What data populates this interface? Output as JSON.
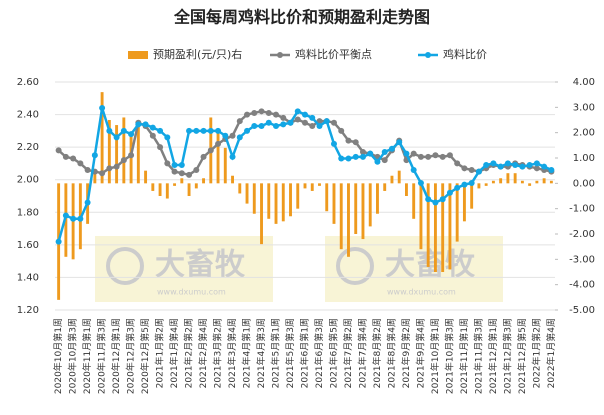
{
  "chart_data": {
    "type": "combo",
    "title": "全国每周鸡料比价和预期盈利走势图",
    "legend": "top",
    "grid": true,
    "watermarks": [
      {
        "text": "大畜牧",
        "url": "www.dxumu.com"
      },
      {
        "text": "大畜牧",
        "url": "www.dxumu.com"
      }
    ],
    "categories": [
      "2020年10月第1周",
      null,
      "2020年10月第3周",
      null,
      "2020年11月第1周",
      null,
      "2020年11月第3周",
      null,
      "2020年12月第1周",
      null,
      "2020年12月第3周",
      null,
      "2020年12月第5周",
      null,
      "2021年1月第2周",
      null,
      "2021年1月第4周",
      null,
      "2021年2月第2周",
      null,
      "2021年2月第4周",
      null,
      "2021年3月第2周",
      null,
      "2021年3月第4周",
      null,
      "2021年4月第1周",
      null,
      "2021年4月第3周",
      null,
      "2021年5月第1周",
      null,
      "2021年5月第3周",
      null,
      "2021年6月第1周",
      null,
      "2021年6月第3周",
      null,
      "2021年6月第5周",
      null,
      "2021年7月第2周",
      null,
      "2021年7月第4周",
      null,
      "2021年8月第2周",
      null,
      "2021年8月第4周",
      null,
      "2021年9月第2周",
      null,
      "2021年9月第4周",
      null,
      "2021年10月第1周",
      null,
      "2021年10月第3周",
      null,
      "2021年11月第1周",
      null,
      "2021年11月第3周",
      null,
      "2021年12月第1周",
      null,
      "2021年12月第3周",
      null,
      "2021年12月第5周",
      null,
      "2022年1月第2周",
      null,
      "2022年1月第4周"
    ],
    "series": [
      {
        "name": "预期盈利(元/只)右",
        "type": "bar",
        "axis": "y2",
        "color": "#ee9a1e",
        "values": [
          -4.6,
          -2.9,
          -3.0,
          -2.6,
          -1.6,
          0.4,
          3.6,
          2.5,
          2.3,
          2.6,
          1.9,
          2.4,
          0.5,
          -0.3,
          -0.5,
          -0.6,
          -0.1,
          0.2,
          -0.5,
          -0.2,
          0.2,
          2.6,
          2.0,
          1.4,
          0.3,
          -0.4,
          -0.8,
          -1.2,
          -2.4,
          -1.4,
          -1.6,
          -1.5,
          -1.3,
          -1.0,
          -0.2,
          -0.3,
          -0.1,
          -1.1,
          -1.6,
          -2.6,
          -2.9,
          -2.0,
          -2.2,
          -1.7,
          -1.2,
          -0.3,
          0.3,
          0.5,
          -0.5,
          -1.4,
          -2.6,
          -3.3,
          -3.5,
          -3.5,
          -3.4,
          -2.3,
          -1.5,
          -1.0,
          -0.2,
          -0.1,
          0.1,
          0.2,
          0.4,
          0.4,
          0.1,
          -0.1,
          0.1,
          0.2,
          0.1
        ]
      },
      {
        "name": "鸡料比价平衡点",
        "type": "line",
        "axis": "y",
        "color": "#808080",
        "values": [
          2.18,
          2.14,
          2.13,
          2.1,
          2.06,
          2.05,
          2.04,
          2.07,
          2.08,
          2.12,
          2.15,
          2.35,
          2.33,
          2.27,
          2.2,
          2.1,
          2.05,
          2.04,
          2.03,
          2.06,
          2.14,
          2.18,
          2.22,
          2.25,
          2.27,
          2.36,
          2.4,
          2.41,
          2.42,
          2.41,
          2.4,
          2.38,
          2.35,
          2.37,
          2.35,
          2.33,
          2.36,
          2.36,
          2.35,
          2.3,
          2.24,
          2.23,
          2.17,
          2.16,
          2.14,
          2.12,
          2.18,
          2.24,
          2.12,
          2.16,
          2.14,
          2.14,
          2.15,
          2.14,
          2.15,
          2.1,
          2.07,
          2.06,
          2.05,
          2.07,
          2.09,
          2.08,
          2.08,
          2.1,
          2.09,
          2.08,
          2.07,
          2.06,
          2.05
        ]
      },
      {
        "name": "鸡料比价",
        "type": "line",
        "axis": "y",
        "color": "#12a6e4",
        "values": [
          1.62,
          1.78,
          1.76,
          1.76,
          1.86,
          2.15,
          2.44,
          2.3,
          2.26,
          2.3,
          2.28,
          2.34,
          2.34,
          2.32,
          2.3,
          2.26,
          2.09,
          2.09,
          2.3,
          2.3,
          2.3,
          2.3,
          2.3,
          2.27,
          2.14,
          2.26,
          2.3,
          2.33,
          2.33,
          2.35,
          2.33,
          2.34,
          2.35,
          2.42,
          2.4,
          2.38,
          2.33,
          2.36,
          2.22,
          2.13,
          2.13,
          2.14,
          2.14,
          2.16,
          2.11,
          2.17,
          2.19,
          2.23,
          2.16,
          2.06,
          1.98,
          1.88,
          1.86,
          1.88,
          1.92,
          1.95,
          1.97,
          1.98,
          2.05,
          2.09,
          2.1,
          2.08,
          2.1,
          2.09,
          2.08,
          2.09,
          2.1,
          2.08,
          2.06
        ]
      }
    ],
    "ylim": [
      1.2,
      2.6
    ],
    "yticks": [
      {
        "value": 1.2,
        "label": "1.20"
      },
      {
        "value": 1.4,
        "label": "1.40"
      },
      {
        "value": 1.6,
        "label": "1.60"
      },
      {
        "value": 1.8,
        "label": "1.80"
      },
      {
        "value": 2.0,
        "label": "2.00"
      },
      {
        "value": 2.2,
        "label": "2.20"
      },
      {
        "value": 2.4,
        "label": "2.40"
      },
      {
        "value": 2.6,
        "label": "2.60"
      }
    ],
    "y2lim": [
      -5,
      4
    ],
    "y2ticks": [
      {
        "value": 4,
        "label": "4.00"
      },
      {
        "value": 3,
        "label": "3.00"
      },
      {
        "value": 2,
        "label": "2.00"
      },
      {
        "value": 1,
        "label": "1.00"
      },
      {
        "value": 0,
        "label": "0.00"
      },
      {
        "value": -1,
        "label": "-1.00"
      },
      {
        "value": -2,
        "label": "-2.00"
      },
      {
        "value": -3,
        "label": "-3.00"
      },
      {
        "value": -4,
        "label": "-4.00"
      },
      {
        "value": -5,
        "label": "-5.00"
      }
    ]
  }
}
